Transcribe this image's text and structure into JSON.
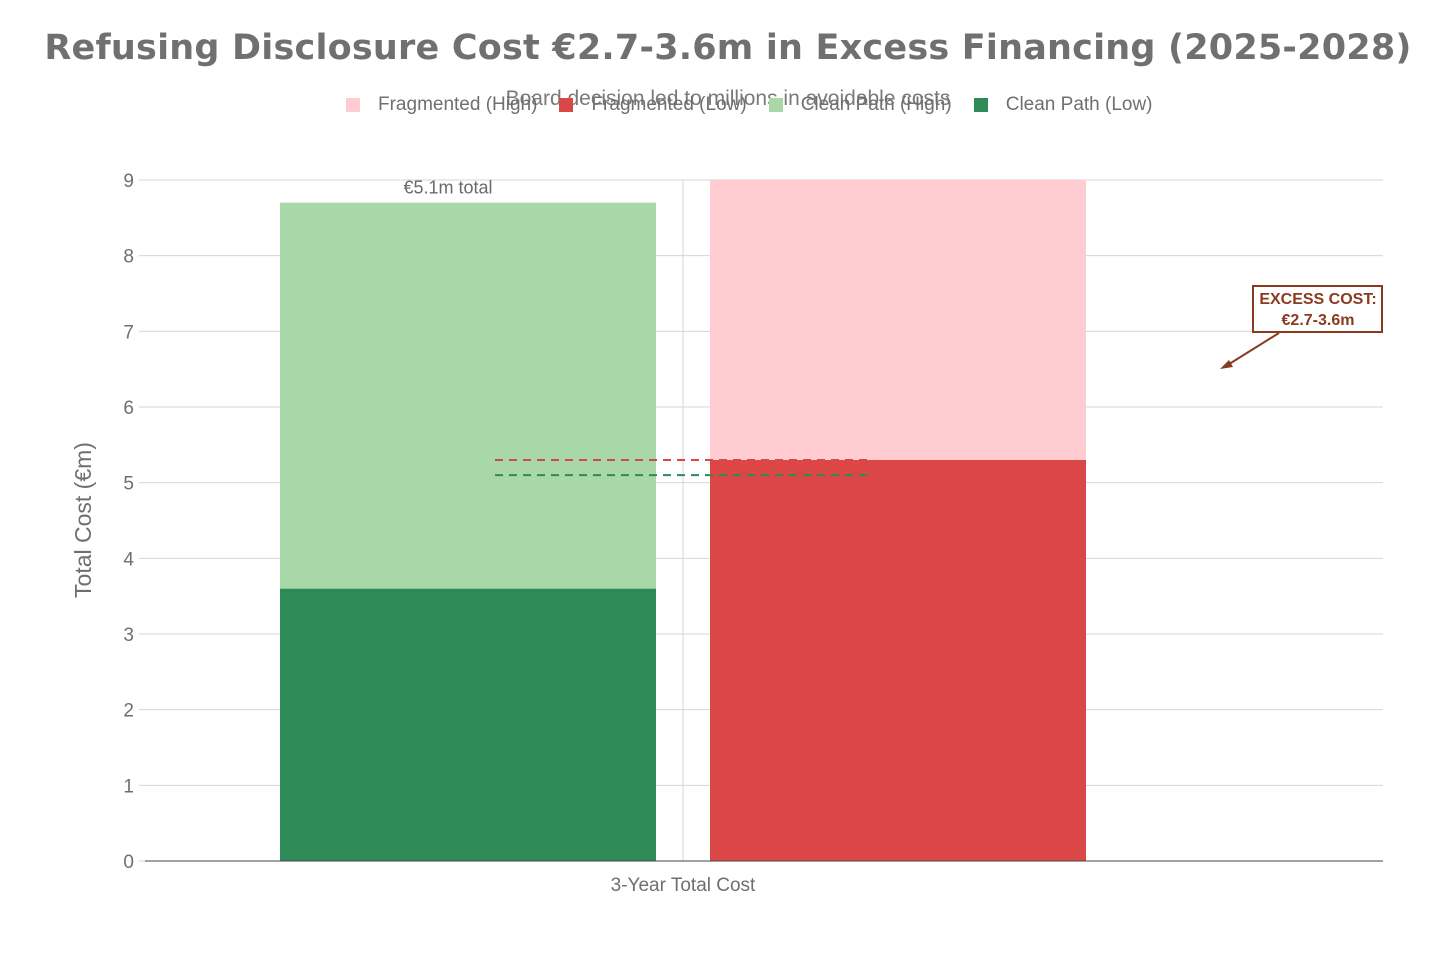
{
  "title": "Refusing Disclosure Cost €2.7-3.6m in Excess Financing (2025-2028)",
  "subtitle": "Board decision led to millions in avoidable costs",
  "legend": [
    {
      "label": "Fragmented (High)",
      "color": "#ffccd2"
    },
    {
      "label": "Fragmented (Low)",
      "color": "#db4646"
    },
    {
      "label": "Clean Path (High)",
      "color": "#a8d7a8"
    },
    {
      "label": "Clean Path (Low)",
      "color": "#2e8a57"
    }
  ],
  "chart_data": {
    "type": "bar",
    "categories": [
      "3-Year Total Cost"
    ],
    "ylabel": "Total Cost (€m)",
    "xlabel": "",
    "ylim": [
      0,
      9
    ],
    "yticks": [
      0,
      1,
      2,
      3,
      4,
      5,
      6,
      7,
      8,
      9
    ],
    "grid": true,
    "bars": [
      {
        "group": "Clean Path",
        "segments": [
          {
            "series": "Clean Path (Low)",
            "value": 3.6,
            "color": "#2e8a57"
          },
          {
            "series": "Clean Path (High)",
            "value": 5.1,
            "color": "#a8d7a8"
          }
        ],
        "label": "€5.1m total"
      },
      {
        "group": "Fragmented",
        "segments": [
          {
            "series": "Fragmented (Low)",
            "value": 5.3,
            "color": "#db4646"
          },
          {
            "series": "Fragmented (High)",
            "value": 3.7,
            "color": "#ffccd2"
          }
        ],
        "label": ""
      }
    ],
    "reference_lines": [
      {
        "value": 5.3,
        "color": "#db4646",
        "style": "dashed"
      },
      {
        "value": 5.1,
        "color": "#2e8a57",
        "style": "dashed"
      }
    ],
    "annotation": {
      "text_lines": [
        "EXCESS COST:",
        "€2.7-3.6m"
      ],
      "color": "#8a3a1f"
    }
  }
}
